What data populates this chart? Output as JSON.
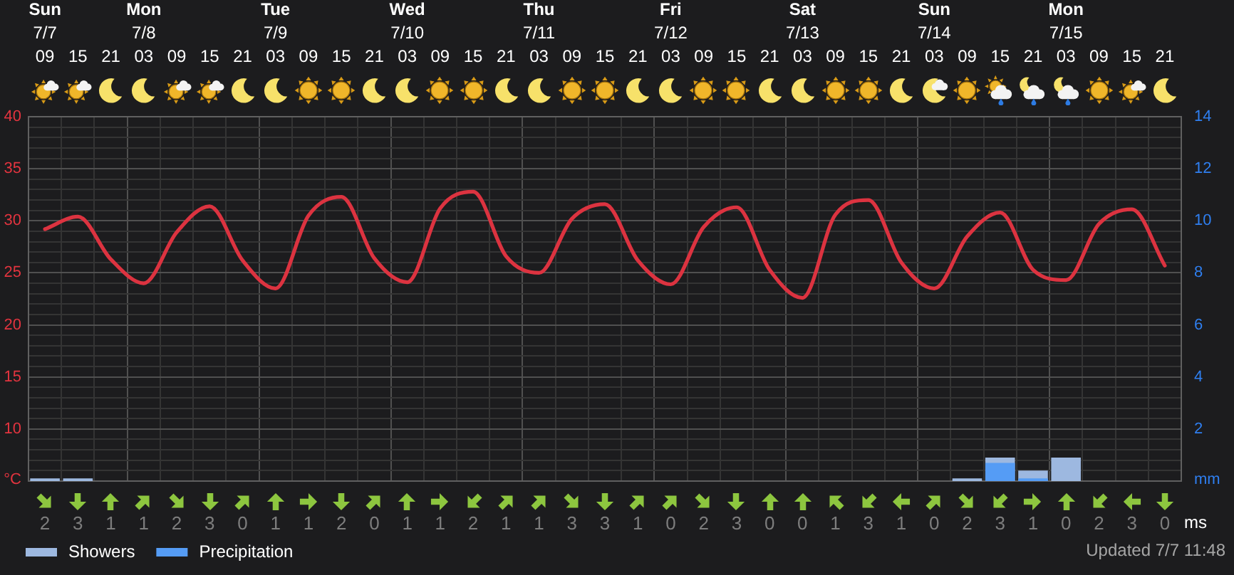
{
  "chart_data": [
    {
      "type": "line",
      "categories": [
        "Sun\n7/7\n09",
        "15",
        "21",
        "Mon\n7/8\n03",
        "09",
        "15",
        "21",
        "Tue\n7/9\n03",
        "09",
        "15",
        "21",
        "Wed\n7/10\n03",
        "09",
        "15",
        "21",
        "Thu\n7/11\n03",
        "09",
        "15",
        "21",
        "Fri\n7/12\n03",
        "09",
        "15",
        "21",
        "Sat\n7/13\n03",
        "09",
        "15",
        "21",
        "Sun\n7/14\n03",
        "09",
        "15",
        "21",
        "Mon\n7/15\n03",
        "09",
        "15",
        "21"
      ],
      "series": [
        {
          "color": "#dc3340",
          "values": [
            29.2,
            30.4,
            26.3,
            24.0,
            28.9,
            31.4,
            26.2,
            23.5,
            30.5,
            32.3,
            26.4,
            24.1,
            31.2,
            32.8,
            26.6,
            25.0,
            30.2,
            31.6,
            26.2,
            23.9,
            29.4,
            31.3,
            25.3,
            22.6,
            30.6,
            32.0,
            26.0,
            23.5,
            28.5,
            30.8,
            25.3,
            24.3,
            29.7,
            31.1,
            25.7
          ]
        },
        {
          "name": "Showers",
          "type": "bar",
          "axis": "y2",
          "color": "#9db8e0",
          "values": [
            0.1,
            0.1,
            null,
            null,
            null,
            null,
            null,
            null,
            null,
            null,
            null,
            null,
            null,
            null,
            null,
            null,
            null,
            null,
            null,
            null,
            null,
            null,
            null,
            null,
            null,
            null,
            null,
            null,
            0.1,
            0.9,
            0.4,
            0.9,
            null,
            null,
            null
          ]
        },
        {
          "name": "Precipitation",
          "type": "bar",
          "axis": "y2",
          "color": "#559cf5",
          "values": [
            null,
            null,
            null,
            null,
            null,
            null,
            null,
            null,
            null,
            null,
            null,
            null,
            null,
            null,
            null,
            null,
            null,
            null,
            null,
            null,
            null,
            null,
            null,
            null,
            null,
            null,
            null,
            null,
            null,
            0.7,
            0.1,
            null,
            null,
            null,
            null
          ]
        }
      ],
      "ylim": [
        5,
        40
      ],
      "yticks": [
        {
          "value": 6,
          "label": null
        },
        {
          "value": 7,
          "label": null
        },
        {
          "value": 8,
          "label": null
        },
        {
          "value": 9,
          "label": null
        },
        10,
        {
          "value": 11,
          "label": null
        },
        {
          "value": 12,
          "label": null
        },
        {
          "value": 13,
          "label": null
        },
        {
          "value": 14,
          "label": null
        },
        15,
        {
          "value": 16,
          "label": null
        },
        {
          "value": 17,
          "label": null
        },
        {
          "value": 18,
          "label": null
        },
        {
          "value": 19,
          "label": null
        },
        20,
        {
          "value": 21,
          "label": null
        },
        {
          "value": 22,
          "label": null
        },
        {
          "value": 23,
          "label": null
        },
        {
          "value": 24,
          "label": null
        },
        25,
        {
          "value": 26,
          "label": null
        },
        {
          "value": 27,
          "label": null
        },
        {
          "value": 28,
          "label": null
        },
        {
          "value": 29,
          "label": null
        },
        30,
        {
          "value": 31,
          "label": null
        },
        {
          "value": 32,
          "label": null
        },
        {
          "value": 33,
          "label": null
        },
        {
          "value": 34,
          "label": null
        },
        35,
        {
          "value": 36,
          "label": null
        },
        {
          "value": 37,
          "label": null
        },
        {
          "value": 38,
          "label": null
        },
        {
          "value": 39,
          "label": null
        },
        40
      ],
      "y2lim": [
        0,
        14
      ],
      "y2ticks": [
        2,
        4,
        6,
        8,
        10,
        12,
        14
      ],
      "ylabel": "°C",
      "y2label": "mm",
      "grid": true,
      "legend": "bottom left",
      "annotations": [
        "Updated 7/7 11:48"
      ]
    },
    {
      "type": "other",
      "values": [
        2,
        3,
        1,
        1,
        2,
        3,
        0,
        1,
        1,
        2,
        0,
        1,
        1,
        2,
        1,
        1,
        3,
        3,
        1,
        0,
        2,
        3,
        0,
        0,
        1,
        3,
        1,
        0,
        2,
        3,
        1,
        0,
        2,
        3,
        0
      ],
      "data_labels": true,
      "ylabel": "ms"
    }
  ]
}
